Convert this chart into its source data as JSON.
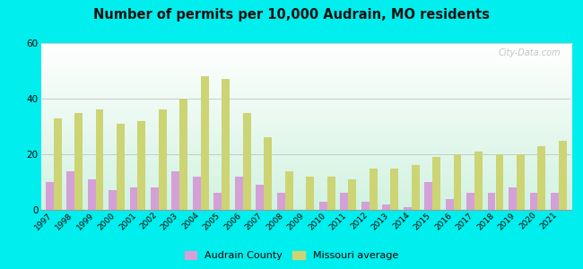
{
  "title": "Number of permits per 10,000 Audrain, MO residents",
  "years": [
    1997,
    1998,
    1999,
    2000,
    2001,
    2002,
    2003,
    2004,
    2005,
    2006,
    2007,
    2008,
    2009,
    2010,
    2011,
    2012,
    2013,
    2014,
    2015,
    2016,
    2017,
    2018,
    2019,
    2020,
    2021
  ],
  "audrain": [
    10,
    14,
    11,
    7,
    8,
    8,
    14,
    12,
    6,
    12,
    9,
    6,
    0,
    3,
    6,
    3,
    2,
    1,
    10,
    4,
    6,
    6,
    8,
    6,
    6
  ],
  "missouri": [
    33,
    35,
    36,
    31,
    32,
    36,
    40,
    48,
    47,
    35,
    26,
    14,
    12,
    12,
    11,
    15,
    15,
    16,
    19,
    20,
    21,
    20,
    20,
    23,
    25
  ],
  "audrain_color": "#d4a0d8",
  "missouri_color": "#ccd474",
  "bg_color": "#00eeee",
  "ylim": [
    0,
    60
  ],
  "yticks": [
    0,
    20,
    40,
    60
  ],
  "bar_width": 0.38,
  "legend_audrain": "Audrain County",
  "legend_missouri": "Missouri average",
  "watermark": "City-Data.com"
}
